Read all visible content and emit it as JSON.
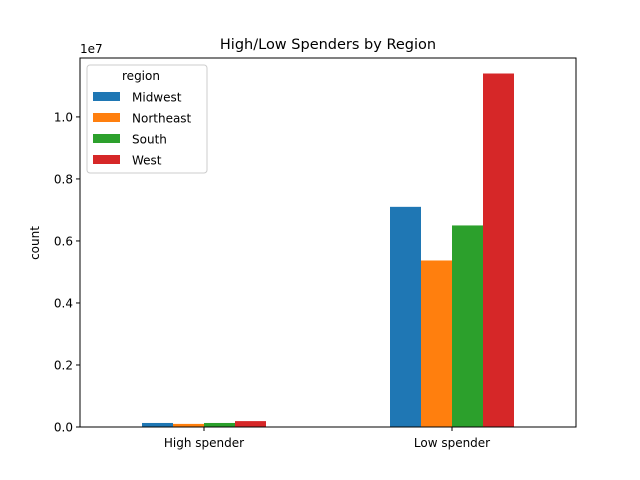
{
  "chart_data": {
    "type": "bar",
    "title": "High/Low Spenders by Region",
    "xlabel": "",
    "ylabel": "count",
    "y_offset_label": "1e7",
    "y_scale": 10000000,
    "ylim": [
      0,
      11900000
    ],
    "yticks": [
      0,
      2000000,
      4000000,
      6000000,
      8000000,
      10000000
    ],
    "ytick_labels": [
      "0.0",
      "0.2",
      "0.4",
      "0.6",
      "0.8",
      "1.0"
    ],
    "categories": [
      "High spender",
      "Low spender"
    ],
    "series": [
      {
        "name": "Midwest",
        "color": "#1f77b4",
        "values": [
          130000,
          7100000
        ]
      },
      {
        "name": "Northeast",
        "color": "#ff7f0e",
        "values": [
          100000,
          5370000
        ]
      },
      {
        "name": "South",
        "color": "#2ca02c",
        "values": [
          130000,
          6500000
        ]
      },
      {
        "name": "West",
        "color": "#d62728",
        "values": [
          190000,
          11400000
        ]
      }
    ],
    "legend": {
      "title": "region",
      "placement": "top-left"
    },
    "grid": false
  }
}
